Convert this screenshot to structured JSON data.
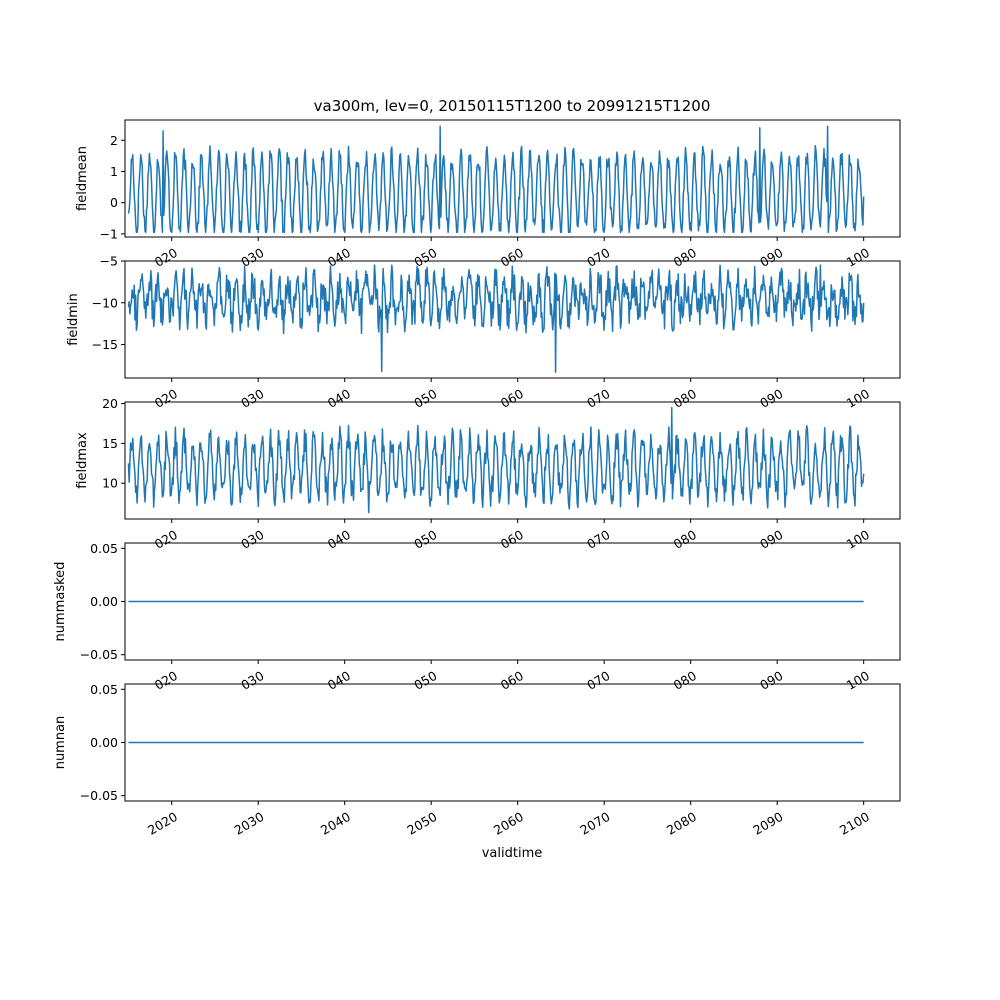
{
  "title": "va300m, lev=0, 20150115T1200 to 20991215T1200",
  "xlabel": "validtime",
  "chart_data": [
    {
      "type": "line",
      "ylabel": "fieldmean",
      "x_range": [
        "2015-01-15",
        "2099-12-15"
      ],
      "xlim": [
        2014.6,
        2104.2
      ],
      "ylim": [
        -1.1,
        2.65
      ],
      "yticks": [
        -1,
        0,
        1,
        2
      ],
      "ytick_labels": [
        "−1",
        "0",
        "1",
        "2"
      ],
      "x_key_points": [
        2015.0,
        2019.0,
        2034.0,
        2051.0,
        2088.0,
        2095.8,
        2100.0
      ],
      "y_key_points": [
        -0.35,
        2.3,
        -0.9,
        2.45,
        2.4,
        2.45,
        0.2
      ],
      "series": {
        "color": "#1f77b4",
        "period_years": 1,
        "amplitude": 1.2,
        "center": 0.3,
        "noise": 0.35,
        "min": -0.95,
        "max": 2.45,
        "start": -0.35,
        "end": 0.2
      }
    },
    {
      "type": "line",
      "ylabel": "fieldmin",
      "x_range": [
        "2015-01-15",
        "2099-12-15"
      ],
      "xlim": [
        2014.6,
        2104.2
      ],
      "ylim": [
        -19.0,
        -5.0
      ],
      "yticks": [
        -15,
        -10,
        -5
      ],
      "ytick_labels": [
        "−15",
        "−10",
        "−5"
      ],
      "x_key_points": [
        2015.0,
        2044.3,
        2064.4,
        2095.0,
        2100.0
      ],
      "y_key_points": [
        -10.5,
        -18.2,
        -18.3,
        -5.5,
        -10.0
      ],
      "series": {
        "color": "#1f77b4",
        "period_years": 1,
        "amplitude": 2.0,
        "center": -9.5,
        "noise": 2.2,
        "min": -18.3,
        "max": -5.5,
        "start": -10.5,
        "end": -10.0
      }
    },
    {
      "type": "line",
      "ylabel": "fieldmax",
      "x_range": [
        "2015-01-15",
        "2099-12-15"
      ],
      "xlim": [
        2014.6,
        2104.2
      ],
      "ylim": [
        5.5,
        20.2
      ],
      "yticks": [
        10,
        15,
        20
      ],
      "ytick_labels": [
        "10",
        "15",
        "20"
      ],
      "x_key_points": [
        2015.0,
        2042.8,
        2077.8,
        2100.0
      ],
      "y_key_points": [
        12.5,
        6.3,
        19.5,
        11.2
      ],
      "series": {
        "color": "#1f77b4",
        "period_years": 1,
        "amplitude": 3.5,
        "center": 12.0,
        "noise": 1.8,
        "min": 6.3,
        "max": 19.5,
        "start": 12.5,
        "end": 11.2
      }
    },
    {
      "type": "line",
      "ylabel": "nummasked",
      "x_range": [
        "2015-01-15",
        "2099-12-15"
      ],
      "xlim": [
        2014.6,
        2104.2
      ],
      "ylim": [
        -0.055,
        0.055
      ],
      "yticks": [
        -0.05,
        0.0,
        0.05
      ],
      "ytick_labels": [
        "−0.05",
        "0.00",
        "0.05"
      ],
      "x": [
        2015.0,
        2100.0
      ],
      "y": [
        0.0,
        0.0
      ],
      "series": {
        "color": "#1f77b4",
        "constant": 0.0
      }
    },
    {
      "type": "line",
      "ylabel": "numnan",
      "x_range": [
        "2015-01-15",
        "2099-12-15"
      ],
      "xlim": [
        2014.6,
        2104.2
      ],
      "ylim": [
        -0.055,
        0.055
      ],
      "yticks": [
        -0.05,
        0.0,
        0.05
      ],
      "ytick_labels": [
        "−0.05",
        "0.00",
        "0.05"
      ],
      "x": [
        2015.0,
        2100.0
      ],
      "y": [
        0.0,
        0.0
      ],
      "series": {
        "color": "#1f77b4",
        "constant": 0.0
      }
    }
  ],
  "xticks": [
    2020,
    2030,
    2040,
    2050,
    2060,
    2070,
    2080,
    2090,
    2100
  ],
  "xtick_labels": [
    "2020",
    "2030",
    "2040",
    "2050",
    "2060",
    "2070",
    "2080",
    "2090",
    "2100"
  ],
  "xtick_partial_labels": [
    "020",
    "030",
    "040",
    "050",
    "060",
    "070",
    "080",
    "090",
    "100"
  ]
}
